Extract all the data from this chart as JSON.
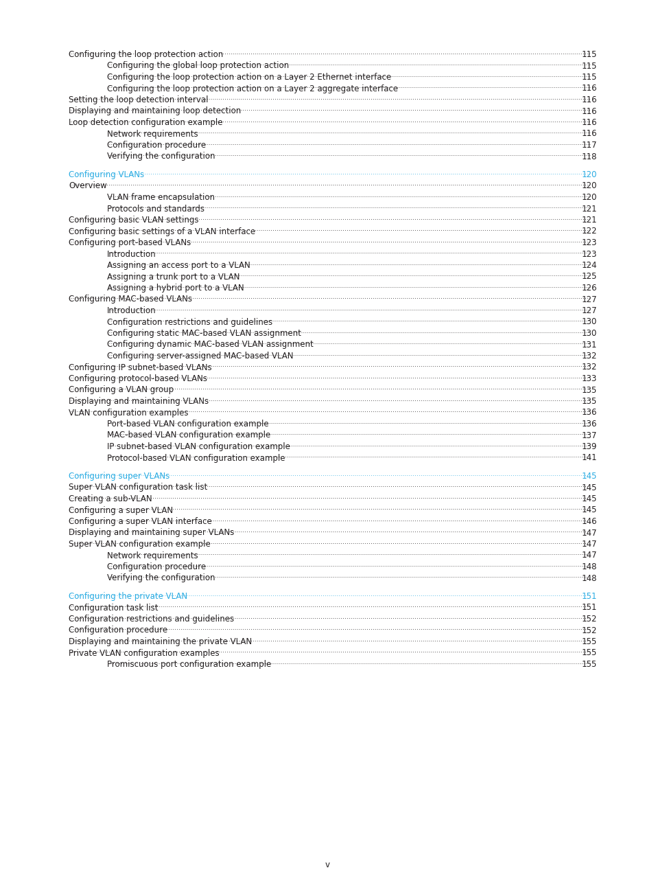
{
  "bg_color": "#ffffff",
  "text_color": "#231f20",
  "cyan_color": "#29abe2",
  "page_width": 9.54,
  "page_height": 12.96,
  "footer_text": "v",
  "entries": [
    {
      "indent": 0,
      "text": "Configuring the loop protection action",
      "page": "115",
      "color": "black"
    },
    {
      "indent": 1,
      "text": "Configuring the global loop protection action",
      "page": "115",
      "color": "black"
    },
    {
      "indent": 1,
      "text": "Configuring the loop protection action on a Layer 2 Ethernet interface",
      "page": "115",
      "color": "black"
    },
    {
      "indent": 1,
      "text": "Configuring the loop protection action on a Layer 2 aggregate interface",
      "page": "116",
      "color": "black"
    },
    {
      "indent": 0,
      "text": "Setting the loop detection interval",
      "page": "116",
      "color": "black"
    },
    {
      "indent": 0,
      "text": "Displaying and maintaining loop detection",
      "page": "116",
      "color": "black"
    },
    {
      "indent": 0,
      "text": "Loop detection configuration example",
      "page": "116",
      "color": "black"
    },
    {
      "indent": 1,
      "text": "Network requirements",
      "page": "116",
      "color": "black"
    },
    {
      "indent": 1,
      "text": "Configuration procedure",
      "page": "117",
      "color": "black"
    },
    {
      "indent": 1,
      "text": "Verifying the configuration",
      "page": "118",
      "color": "black"
    },
    {
      "indent": -1,
      "text": "",
      "page": "",
      "color": "black"
    },
    {
      "indent": -2,
      "text": "Configuring VLANs",
      "page": "120",
      "color": "cyan"
    },
    {
      "indent": 0,
      "text": "Overview",
      "page": "120",
      "color": "black"
    },
    {
      "indent": 1,
      "text": "VLAN frame encapsulation",
      "page": "120",
      "color": "black"
    },
    {
      "indent": 1,
      "text": "Protocols and standards",
      "page": "121",
      "color": "black"
    },
    {
      "indent": 0,
      "text": "Configuring basic VLAN settings",
      "page": "121",
      "color": "black"
    },
    {
      "indent": 0,
      "text": "Configuring basic settings of a VLAN interface",
      "page": "122",
      "color": "black"
    },
    {
      "indent": 0,
      "text": "Configuring port-based VLANs",
      "page": "123",
      "color": "black"
    },
    {
      "indent": 1,
      "text": "Introduction",
      "page": "123",
      "color": "black"
    },
    {
      "indent": 1,
      "text": "Assigning an access port to a VLAN",
      "page": "124",
      "color": "black"
    },
    {
      "indent": 1,
      "text": "Assigning a trunk port to a VLAN",
      "page": "125",
      "color": "black"
    },
    {
      "indent": 1,
      "text": "Assigning a hybrid port to a VLAN",
      "page": "126",
      "color": "black"
    },
    {
      "indent": 0,
      "text": "Configuring MAC-based VLANs",
      "page": "127",
      "color": "black"
    },
    {
      "indent": 1,
      "text": "Introduction",
      "page": "127",
      "color": "black"
    },
    {
      "indent": 1,
      "text": "Configuration restrictions and guidelines",
      "page": "130",
      "color": "black"
    },
    {
      "indent": 1,
      "text": "Configuring static MAC-based VLAN assignment",
      "page": "130",
      "color": "black"
    },
    {
      "indent": 1,
      "text": "Configuring dynamic MAC-based VLAN assignment",
      "page": "131",
      "color": "black"
    },
    {
      "indent": 1,
      "text": "Configuring server-assigned MAC-based VLAN",
      "page": "132",
      "color": "black"
    },
    {
      "indent": 0,
      "text": "Configuring IP subnet-based VLANs",
      "page": "132",
      "color": "black"
    },
    {
      "indent": 0,
      "text": "Configuring protocol-based VLANs",
      "page": "133",
      "color": "black"
    },
    {
      "indent": 0,
      "text": "Configuring a VLAN group",
      "page": "135",
      "color": "black"
    },
    {
      "indent": 0,
      "text": "Displaying and maintaining VLANs",
      "page": "135",
      "color": "black"
    },
    {
      "indent": 0,
      "text": "VLAN configuration examples",
      "page": "136",
      "color": "black"
    },
    {
      "indent": 1,
      "text": "Port-based VLAN configuration example",
      "page": "136",
      "color": "black"
    },
    {
      "indent": 1,
      "text": "MAC-based VLAN configuration example",
      "page": "137",
      "color": "black"
    },
    {
      "indent": 1,
      "text": "IP subnet-based VLAN configuration example",
      "page": "139",
      "color": "black"
    },
    {
      "indent": 1,
      "text": "Protocol-based VLAN configuration example",
      "page": "141",
      "color": "black"
    },
    {
      "indent": -1,
      "text": "",
      "page": "",
      "color": "black"
    },
    {
      "indent": -2,
      "text": "Configuring super VLANs",
      "page": "145",
      "color": "cyan"
    },
    {
      "indent": 0,
      "text": "Super VLAN configuration task list",
      "page": "145",
      "color": "black"
    },
    {
      "indent": 0,
      "text": "Creating a sub-VLAN",
      "page": "145",
      "color": "black"
    },
    {
      "indent": 0,
      "text": "Configuring a super VLAN",
      "page": "145",
      "color": "black"
    },
    {
      "indent": 0,
      "text": "Configuring a super VLAN interface",
      "page": "146",
      "color": "black"
    },
    {
      "indent": 0,
      "text": "Displaying and maintaining super VLANs",
      "page": "147",
      "color": "black"
    },
    {
      "indent": 0,
      "text": "Super VLAN configuration example",
      "page": "147",
      "color": "black"
    },
    {
      "indent": 1,
      "text": "Network requirements",
      "page": "147",
      "color": "black"
    },
    {
      "indent": 1,
      "text": "Configuration procedure",
      "page": "148",
      "color": "black"
    },
    {
      "indent": 1,
      "text": "Verifying the configuration",
      "page": "148",
      "color": "black"
    },
    {
      "indent": -1,
      "text": "",
      "page": "",
      "color": "black"
    },
    {
      "indent": -2,
      "text": "Configuring the private VLAN",
      "page": "151",
      "color": "cyan"
    },
    {
      "indent": 0,
      "text": "Configuration task list",
      "page": "151",
      "color": "black"
    },
    {
      "indent": 0,
      "text": "Configuration restrictions and guidelines",
      "page": "152",
      "color": "black"
    },
    {
      "indent": 0,
      "text": "Configuration procedure",
      "page": "152",
      "color": "black"
    },
    {
      "indent": 0,
      "text": "Displaying and maintaining the private VLAN",
      "page": "155",
      "color": "black"
    },
    {
      "indent": 0,
      "text": "Private VLAN configuration examples",
      "page": "155",
      "color": "black"
    },
    {
      "indent": 1,
      "text": "Promiscuous port configuration example",
      "page": "155",
      "color": "black"
    }
  ]
}
